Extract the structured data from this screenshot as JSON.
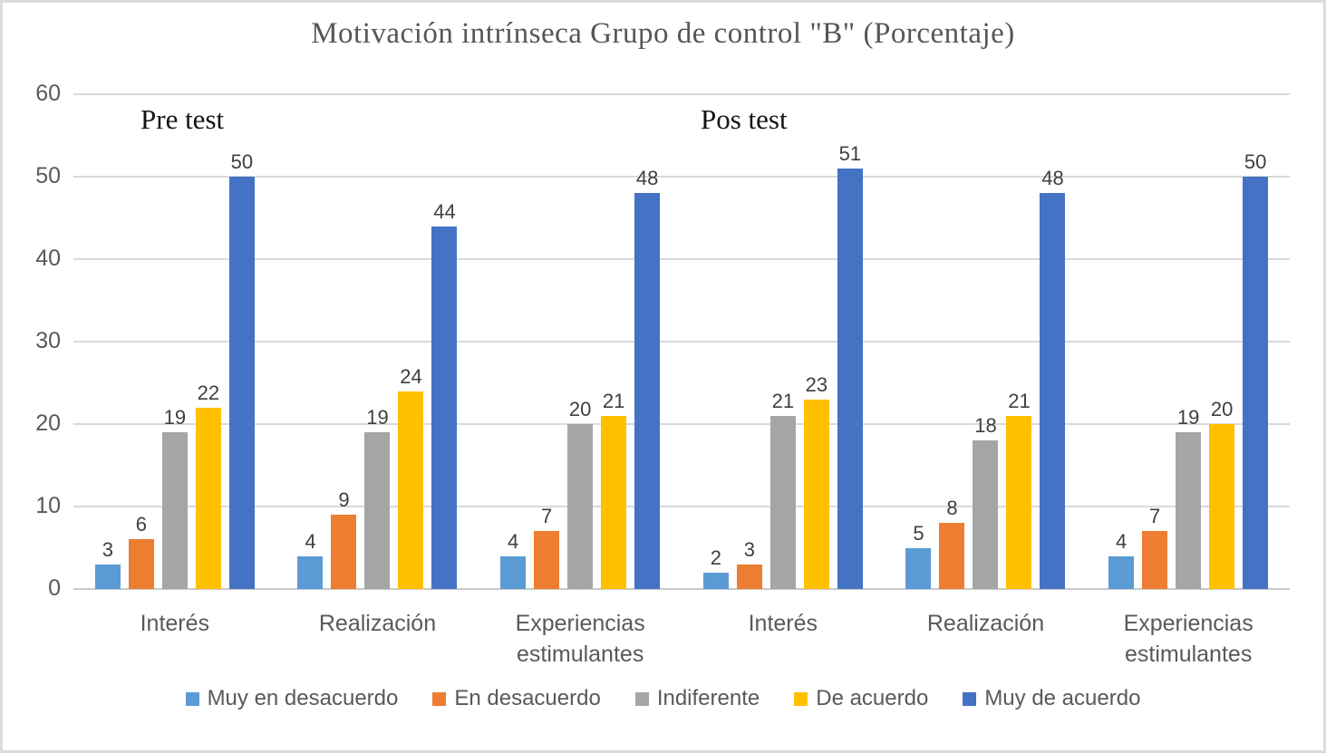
{
  "chart_data": {
    "type": "bar",
    "title": "Motivación intrínseca Grupo de control \"B\" (Porcentaje)",
    "annotations": {
      "pre": "Pre test",
      "pos": "Pos test"
    },
    "categories": [
      "Interés",
      "Realización",
      "Experiencias estimulantes",
      "Interés",
      "Realización",
      "Experiencias estimulantes"
    ],
    "series": [
      {
        "name": "Muy en desacuerdo",
        "color": "#5B9BD5",
        "values": [
          3,
          4,
          4,
          2,
          5,
          4
        ]
      },
      {
        "name": "En desacuerdo",
        "color": "#ED7D31",
        "values": [
          6,
          9,
          7,
          3,
          8,
          7
        ]
      },
      {
        "name": "Indiferente",
        "color": "#A5A5A5",
        "values": [
          19,
          19,
          20,
          21,
          18,
          19
        ]
      },
      {
        "name": "De acuerdo",
        "color": "#FFC000",
        "values": [
          22,
          24,
          21,
          23,
          21,
          20
        ]
      },
      {
        "name": "Muy de acuerdo",
        "color": "#4472C4",
        "values": [
          50,
          44,
          48,
          51,
          48,
          50
        ]
      }
    ],
    "ylim": [
      0,
      60
    ],
    "yticks": [
      0,
      10,
      20,
      30,
      40,
      50,
      60
    ],
    "grid": true,
    "legend_position": "bottom",
    "colors": {
      "gridline": "#D9D9D9",
      "axis_text": "#595959",
      "data_label": "#3f3f3f",
      "title_text": "#565656",
      "border": "#DBDBDB"
    }
  }
}
